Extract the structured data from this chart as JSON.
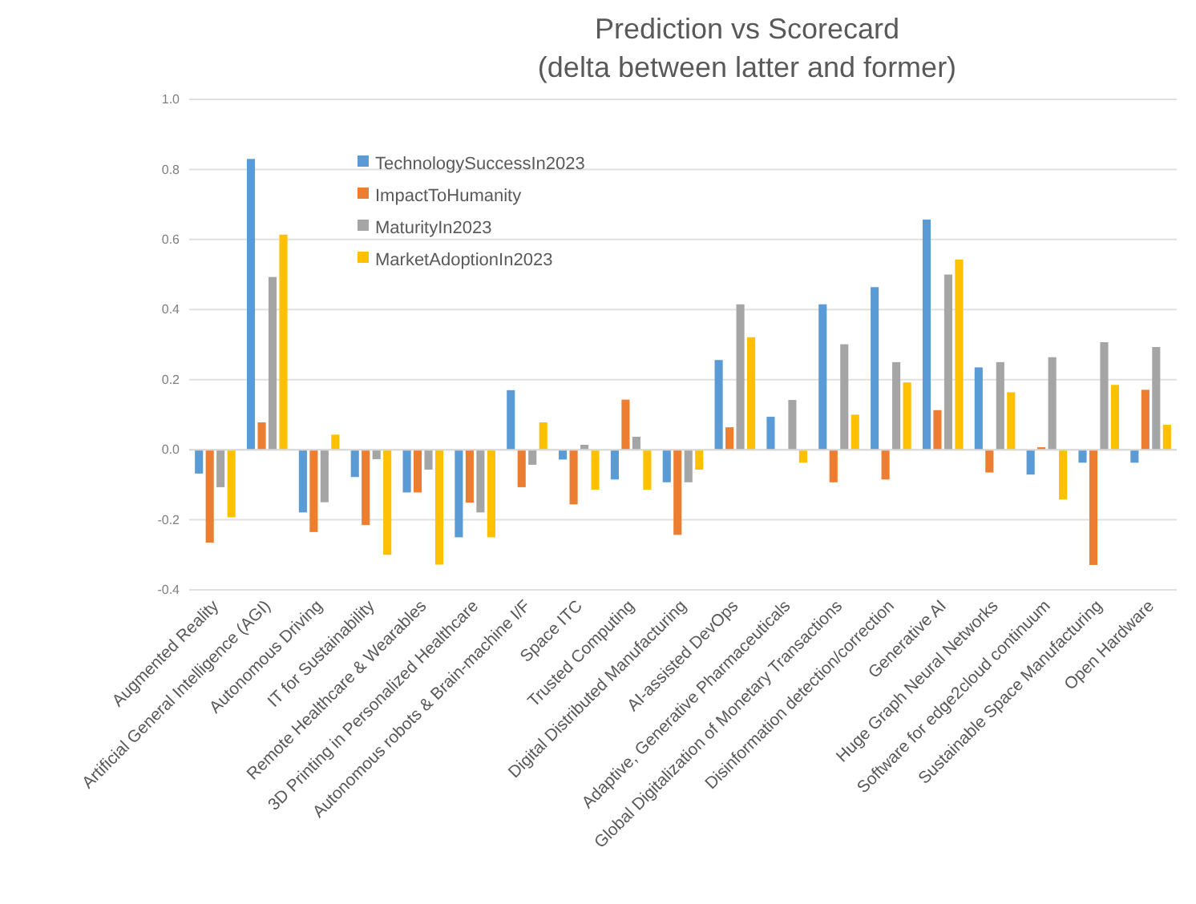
{
  "chart_data": {
    "type": "bar",
    "title": "Prediction vs Scorecard",
    "subtitle": "(delta between latter and former)",
    "categories": [
      "Augmented Reality",
      "Artificial General Intelligence (AGI)",
      "Autonomous Driving",
      "IT for Sustainability",
      "Remote Healthcare & Wearables",
      "3D Printing in Personalized Healthcare",
      "Autonomous robots & Brain-machine I/F",
      "Space ITC",
      "Trusted Computing",
      "Digital Distributed Manufacturing",
      "AI-assisted DevOps",
      "Adaptive, Generative Pharmaceuticals",
      "Global Digitalization of Monetary Transactions",
      "Disinformation detection/correction",
      "Generative AI",
      "Huge Graph Neural Networks",
      "Software for edge2cloud continuum",
      "Sustainable Space Manufacturing",
      "Open Hardware"
    ],
    "series": [
      {
        "name": "TechnologySuccessIn2023",
        "color": "#5b9bd5",
        "values": [
          -0.068,
          0.83,
          -0.179,
          -0.078,
          -0.122,
          -0.25,
          0.17,
          -0.028,
          -0.085,
          -0.093,
          0.256,
          0.094,
          0.415,
          0.464,
          0.657,
          0.235,
          -0.071,
          -0.037,
          -0.037
        ]
      },
      {
        "name": "ImpactToHumanity",
        "color": "#ed7d31",
        "values": [
          -0.265,
          0.078,
          -0.235,
          -0.215,
          -0.122,
          -0.151,
          -0.107,
          -0.156,
          0.143,
          -0.243,
          0.064,
          0,
          -0.093,
          -0.085,
          0.113,
          -0.065,
          0.007,
          -0.329,
          0.171
        ]
      },
      {
        "name": "MaturityIn2023",
        "color": "#a5a5a5",
        "values": [
          -0.107,
          0.493,
          -0.15,
          -0.027,
          -0.057,
          -0.179,
          -0.043,
          0.014,
          0.037,
          -0.093,
          0.415,
          0.142,
          0.301,
          0.25,
          0.5,
          0.25,
          0.264,
          0.307,
          0.293
        ]
      },
      {
        "name": "MarketAdoptionIn2023",
        "color": "#ffc000",
        "values": [
          -0.193,
          0.614,
          0.043,
          -0.3,
          -0.328,
          -0.25,
          0.078,
          -0.114,
          -0.114,
          -0.057,
          0.321,
          -0.037,
          0.1,
          0.192,
          0.543,
          0.164,
          -0.142,
          0.185,
          0.071
        ]
      }
    ],
    "ylim": [
      -0.4,
      1.0
    ],
    "yticks": [
      {
        "value": -0.4,
        "label": "-0.4"
      },
      {
        "value": -0.2,
        "label": "-0.2"
      },
      {
        "value": 0,
        "label": "0.0"
      },
      {
        "value": 0.2,
        "label": "0.2"
      },
      {
        "value": 0.4,
        "label": "0.4"
      },
      {
        "value": 0.6,
        "label": "0.6"
      },
      {
        "value": 0.8,
        "label": "0.8"
      },
      {
        "value": 1,
        "label": "1.0"
      }
    ],
    "grid": "y",
    "legend": "top left"
  }
}
